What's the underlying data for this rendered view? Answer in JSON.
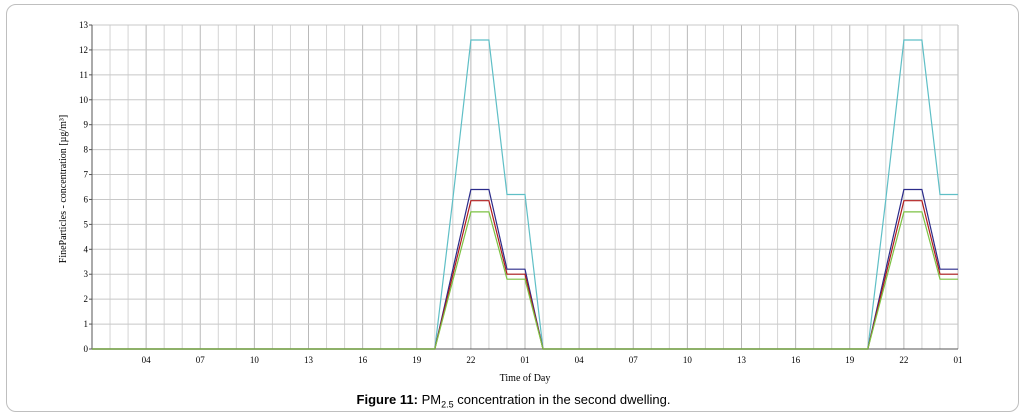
{
  "caption": {
    "prefix": "Figure 11:",
    "text_before": "PM",
    "subscript": "2.5",
    "text_after": "concentration in the second dwelling."
  },
  "chart_data": {
    "type": "line",
    "title": "",
    "xlabel": "Time of Day",
    "ylabel": "FineParticles - concentration [µg/m³]",
    "ylim": [
      0,
      13
    ],
    "yticks": [
      0,
      1,
      2,
      3,
      4,
      5,
      6,
      7,
      8,
      9,
      10,
      11,
      12,
      13
    ],
    "xlim": [
      0,
      48
    ],
    "xticks": [
      {
        "x": 3,
        "label": "04"
      },
      {
        "x": 6,
        "label": "07"
      },
      {
        "x": 9,
        "label": "10"
      },
      {
        "x": 12,
        "label": "13"
      },
      {
        "x": 15,
        "label": "16"
      },
      {
        "x": 18,
        "label": "19"
      },
      {
        "x": 21,
        "label": "22"
      },
      {
        "x": 24,
        "label": "01"
      },
      {
        "x": 27,
        "label": "04"
      },
      {
        "x": 30,
        "label": "07"
      },
      {
        "x": 33,
        "label": "10"
      },
      {
        "x": 36,
        "label": "13"
      },
      {
        "x": 39,
        "label": "16"
      },
      {
        "x": 42,
        "label": "19"
      },
      {
        "x": 45,
        "label": "22"
      },
      {
        "x": 48,
        "label": "01"
      }
    ],
    "grid": true,
    "colors": [
      "#5fbfc6",
      "#2b2b8a",
      "#b01c1c",
      "#7cc243"
    ],
    "series": [
      {
        "color": "#5fbfc6",
        "points": [
          [
            0,
            0
          ],
          [
            19,
            0
          ],
          [
            20,
            6
          ],
          [
            21,
            12.4
          ],
          [
            22,
            12.4
          ],
          [
            23,
            6.2
          ],
          [
            24,
            6.2
          ],
          [
            25,
            0
          ],
          [
            43,
            0
          ],
          [
            44,
            6
          ],
          [
            45,
            12.4
          ],
          [
            46,
            12.4
          ],
          [
            47,
            6.2
          ],
          [
            48,
            6.2
          ]
        ]
      },
      {
        "color": "#2b2b8a",
        "points": [
          [
            0,
            0
          ],
          [
            19,
            0
          ],
          [
            21,
            6.4
          ],
          [
            22,
            6.4
          ],
          [
            23,
            3.2
          ],
          [
            24,
            3.2
          ],
          [
            25,
            0
          ],
          [
            43,
            0
          ],
          [
            45,
            6.4
          ],
          [
            46,
            6.4
          ],
          [
            47,
            3.2
          ],
          [
            48,
            3.2
          ]
        ]
      },
      {
        "color": "#b01c1c",
        "points": [
          [
            0,
            0
          ],
          [
            19,
            0
          ],
          [
            21,
            5.95
          ],
          [
            22,
            5.95
          ],
          [
            23,
            3.0
          ],
          [
            24,
            3.0
          ],
          [
            25,
            0
          ],
          [
            43,
            0
          ],
          [
            45,
            5.95
          ],
          [
            46,
            5.95
          ],
          [
            47,
            3.0
          ],
          [
            48,
            3.0
          ]
        ]
      },
      {
        "color": "#7cc243",
        "points": [
          [
            0,
            0
          ],
          [
            19,
            0
          ],
          [
            21,
            5.5
          ],
          [
            22,
            5.5
          ],
          [
            23,
            2.8
          ],
          [
            24,
            2.8
          ],
          [
            25,
            0
          ],
          [
            43,
            0
          ],
          [
            45,
            5.5
          ],
          [
            46,
            5.5
          ],
          [
            47,
            2.8
          ],
          [
            48,
            2.8
          ]
        ]
      }
    ]
  }
}
